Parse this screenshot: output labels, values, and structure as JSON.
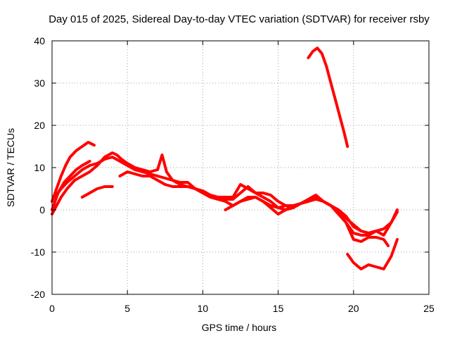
{
  "chart_data": {
    "type": "line",
    "title": "Day 015 of 2025, Sidereal Day-to-day VTEC variation (SDTVAR) for receiver rsby",
    "xlabel": "GPS time / hours",
    "ylabel": "SDTVAR / TECUs",
    "xlim": [
      0,
      25
    ],
    "ylim": [
      -20,
      40
    ],
    "xticks": [
      0,
      5,
      10,
      15,
      20,
      25
    ],
    "yticks": [
      -20,
      -10,
      0,
      10,
      20,
      30,
      40
    ],
    "grid": true,
    "line_color": "#ff0000",
    "series": [
      {
        "name": "trace-1",
        "x": [
          0.0,
          0.3,
          0.6,
          0.9,
          1.2,
          1.6,
          2.0,
          2.4,
          2.8
        ],
        "y": [
          2,
          5,
          8,
          10.5,
          12.5,
          14,
          15,
          16,
          15.3
        ]
      },
      {
        "name": "trace-2",
        "x": [
          0.0,
          0.4,
          0.8,
          1.2,
          1.6,
          2.0,
          2.5
        ],
        "y": [
          0,
          4,
          6.5,
          8,
          9.5,
          10.5,
          11.5
        ]
      },
      {
        "name": "trace-3",
        "x": [
          0.0,
          0.3,
          0.6,
          1.0,
          1.5,
          2.0,
          2.5,
          3.0,
          3.5,
          4.0,
          4.3,
          4.6,
          5.0,
          5.5,
          6.0,
          6.5,
          7.0,
          7.3,
          7.6,
          8.0,
          8.5,
          9.0,
          9.5,
          10.0,
          10.5,
          11.0,
          11.5,
          12.0,
          12.5,
          13.0,
          13.5,
          14.0,
          14.5,
          15.0,
          15.5,
          16.0,
          16.5,
          17.0,
          17.5,
          18.0,
          18.5,
          19.0,
          19.5,
          20.0,
          20.5,
          21.0,
          21.5,
          22.0,
          22.5,
          22.9
        ],
        "y": [
          -1,
          1,
          3,
          5,
          7,
          8,
          9,
          10.5,
          12.5,
          13.5,
          13,
          12,
          11,
          10,
          9.5,
          9,
          9.5,
          13,
          9,
          7,
          6.5,
          6.5,
          5,
          4,
          3.5,
          3,
          3,
          3,
          6,
          5,
          4,
          4,
          3.5,
          2,
          1,
          1,
          1.5,
          2,
          2.5,
          2,
          1,
          0,
          -1.5,
          -4,
          -5,
          -5.5,
          -5,
          -4.5,
          -3,
          -0.5
        ]
      },
      {
        "name": "trace-4",
        "x": [
          0.2,
          0.6,
          1.0,
          1.5,
          2.0,
          2.5,
          3.0,
          3.5,
          4.0,
          4.5,
          5.0,
          5.5,
          6.0,
          6.5,
          7.0,
          7.5,
          8.0,
          8.5,
          9.0,
          9.5,
          10.0,
          10.5,
          11.0,
          11.5,
          12.0,
          12.5,
          13.0,
          13.5,
          14.0,
          14.5,
          15.0,
          15.5,
          16.0,
          16.5,
          17.0,
          17.5,
          18.0,
          18.5,
          19.0,
          19.5,
          20.0,
          20.5,
          21.0,
          21.5,
          22.0,
          22.5,
          22.9
        ],
        "y": [
          3,
          5,
          6.5,
          8,
          9.5,
          10.5,
          11,
          12,
          12.5,
          11.5,
          10.5,
          9.5,
          9,
          8.5,
          8,
          7.5,
          7,
          6,
          5.5,
          5,
          4.5,
          3.5,
          3,
          2.5,
          2.5,
          4,
          5.5,
          4,
          3,
          2,
          0.5,
          1,
          0.5,
          1.5,
          2.5,
          3.5,
          2,
          1,
          -1,
          -3,
          -5.5,
          -6,
          -6,
          -5,
          -6,
          -3,
          0
        ]
      },
      {
        "name": "trace-5",
        "x": [
          2.0,
          2.5,
          3.0,
          3.5,
          4.0
        ],
        "y": [
          3,
          4,
          5,
          5.5,
          5.5
        ]
      },
      {
        "name": "trace-6",
        "x": [
          4.5,
          5.0,
          5.5,
          6.0,
          6.5,
          7.0,
          7.5,
          8.0,
          8.5,
          9.0,
          9.5,
          10.0,
          10.5,
          11.0,
          11.5,
          12.0,
          12.5,
          13.0,
          13.5,
          14.0,
          14.5,
          15.0,
          15.5,
          16.0,
          16.5,
          17.0,
          17.5,
          18.0,
          18.5,
          19.0,
          19.5,
          20.0,
          20.5,
          21.0,
          21.5
        ],
        "y": [
          8,
          9,
          8.5,
          8,
          8,
          7,
          6,
          5.5,
          5.5,
          5.5,
          5,
          4,
          3,
          2.5,
          2,
          1,
          2,
          3,
          3,
          2,
          1,
          0.5,
          0,
          1,
          1.5,
          2,
          3,
          2,
          1,
          -0.5,
          -2,
          -3.5,
          -5,
          -5.5,
          -5
        ]
      },
      {
        "name": "trace-7",
        "x": [
          11.5,
          12.0,
          12.5,
          13.0,
          13.5,
          14.0,
          14.5,
          15.0,
          15.5,
          16.0
        ],
        "y": [
          0,
          1,
          2,
          2.5,
          3,
          2,
          0.5,
          -1,
          0,
          0.5
        ]
      },
      {
        "name": "trace-8",
        "x": [
          17.0,
          17.3,
          17.6,
          17.9,
          18.2,
          18.5,
          18.8,
          19.1,
          19.4,
          19.6
        ],
        "y": [
          36,
          37.5,
          38.3,
          37,
          34,
          30,
          26,
          22,
          18,
          15
        ]
      },
      {
        "name": "trace-9",
        "x": [
          19.6,
          20.0,
          20.5,
          21.0,
          21.5,
          22.0,
          22.5,
          22.9
        ],
        "y": [
          -10.5,
          -12.5,
          -14,
          -13,
          -13.5,
          -14,
          -11,
          -7
        ]
      },
      {
        "name": "trace-10",
        "x": [
          19.5,
          20.0,
          20.5,
          21.0,
          21.5,
          22.0,
          22.3
        ],
        "y": [
          -3,
          -7,
          -7.5,
          -6.5,
          -6.5,
          -7,
          -8.5
        ]
      }
    ]
  }
}
